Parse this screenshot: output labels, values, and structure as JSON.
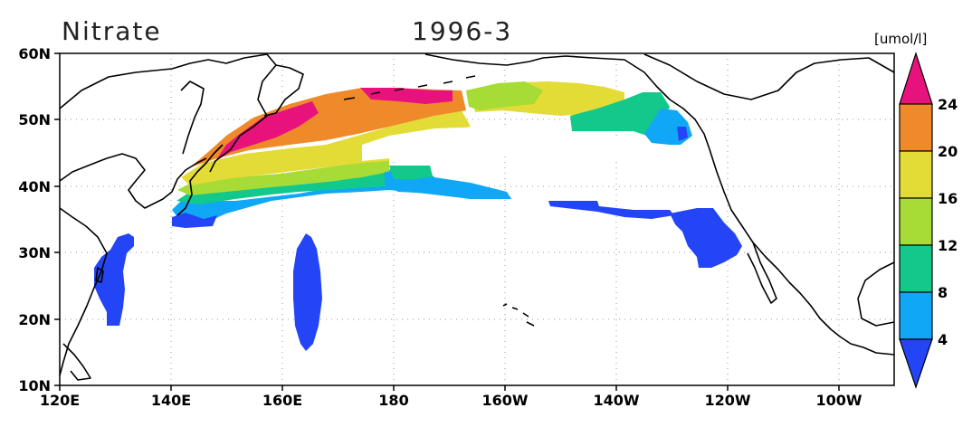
{
  "header": {
    "variable": "Nitrate",
    "date": "1996-3",
    "unit": "[umol/l]"
  },
  "axes": {
    "lon_ticks": [
      "120E",
      "140E",
      "160E",
      "180",
      "160W",
      "140W",
      "120W",
      "100W"
    ],
    "lat_ticks": [
      "10N",
      "20N",
      "30N",
      "40N",
      "50N",
      "60N"
    ]
  },
  "colorbar": {
    "labels": [
      "4",
      "8",
      "12",
      "16",
      "20",
      "24"
    ],
    "colors": [
      "#2445f5",
      "#10a8f6",
      "#12c88a",
      "#a6dc35",
      "#e3dc36",
      "#ef8a2b",
      "#e8127c"
    ]
  },
  "map": {
    "coastline_color": "#000000",
    "gridline": "dotted",
    "extent": {
      "lon": [
        120,
        270
      ],
      "lat": [
        10,
        60
      ]
    }
  }
}
